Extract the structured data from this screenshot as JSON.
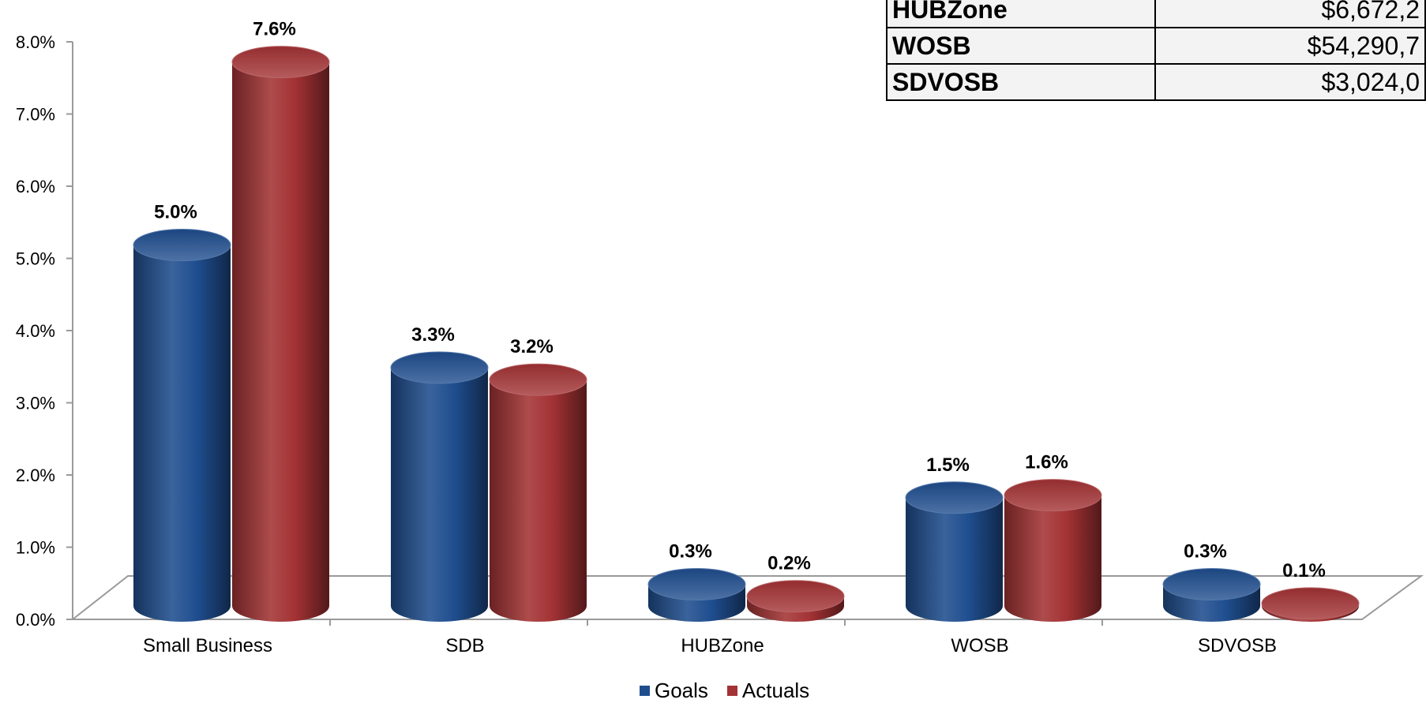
{
  "chart_data": {
    "type": "bar",
    "style": "3d-cylinder",
    "categories": [
      "Small Business",
      "SDB",
      "HUBZone",
      "WOSB",
      "SDVOSB"
    ],
    "series": [
      {
        "name": "Goals",
        "color": "#1f4e8f",
        "values": [
          5.0,
          3.3,
          0.3,
          1.5,
          0.3
        ],
        "labels": [
          "5.0%",
          "3.3%",
          "0.3%",
          "1.5%",
          "0.3%"
        ]
      },
      {
        "name": "Actuals",
        "color": "#a33234",
        "values": [
          7.6,
          3.2,
          0.2,
          1.6,
          0.1
        ],
        "labels": [
          "7.6%",
          "3.2%",
          "0.2%",
          "1.6%",
          "0.1%"
        ]
      }
    ],
    "y_ticks": [
      "0.0%",
      "1.0%",
      "2.0%",
      "3.0%",
      "4.0%",
      "5.0%",
      "6.0%",
      "7.0%",
      "8.0%"
    ],
    "ylim": [
      0,
      8
    ],
    "grid": false,
    "legend_position": "bottom"
  },
  "table": {
    "rows": [
      {
        "category": "HUBZone",
        "amount": "$6,672,2"
      },
      {
        "category": "WOSB",
        "amount": "$54,290,7"
      },
      {
        "category": "SDVOSB",
        "amount": "$3,024,0"
      }
    ]
  }
}
